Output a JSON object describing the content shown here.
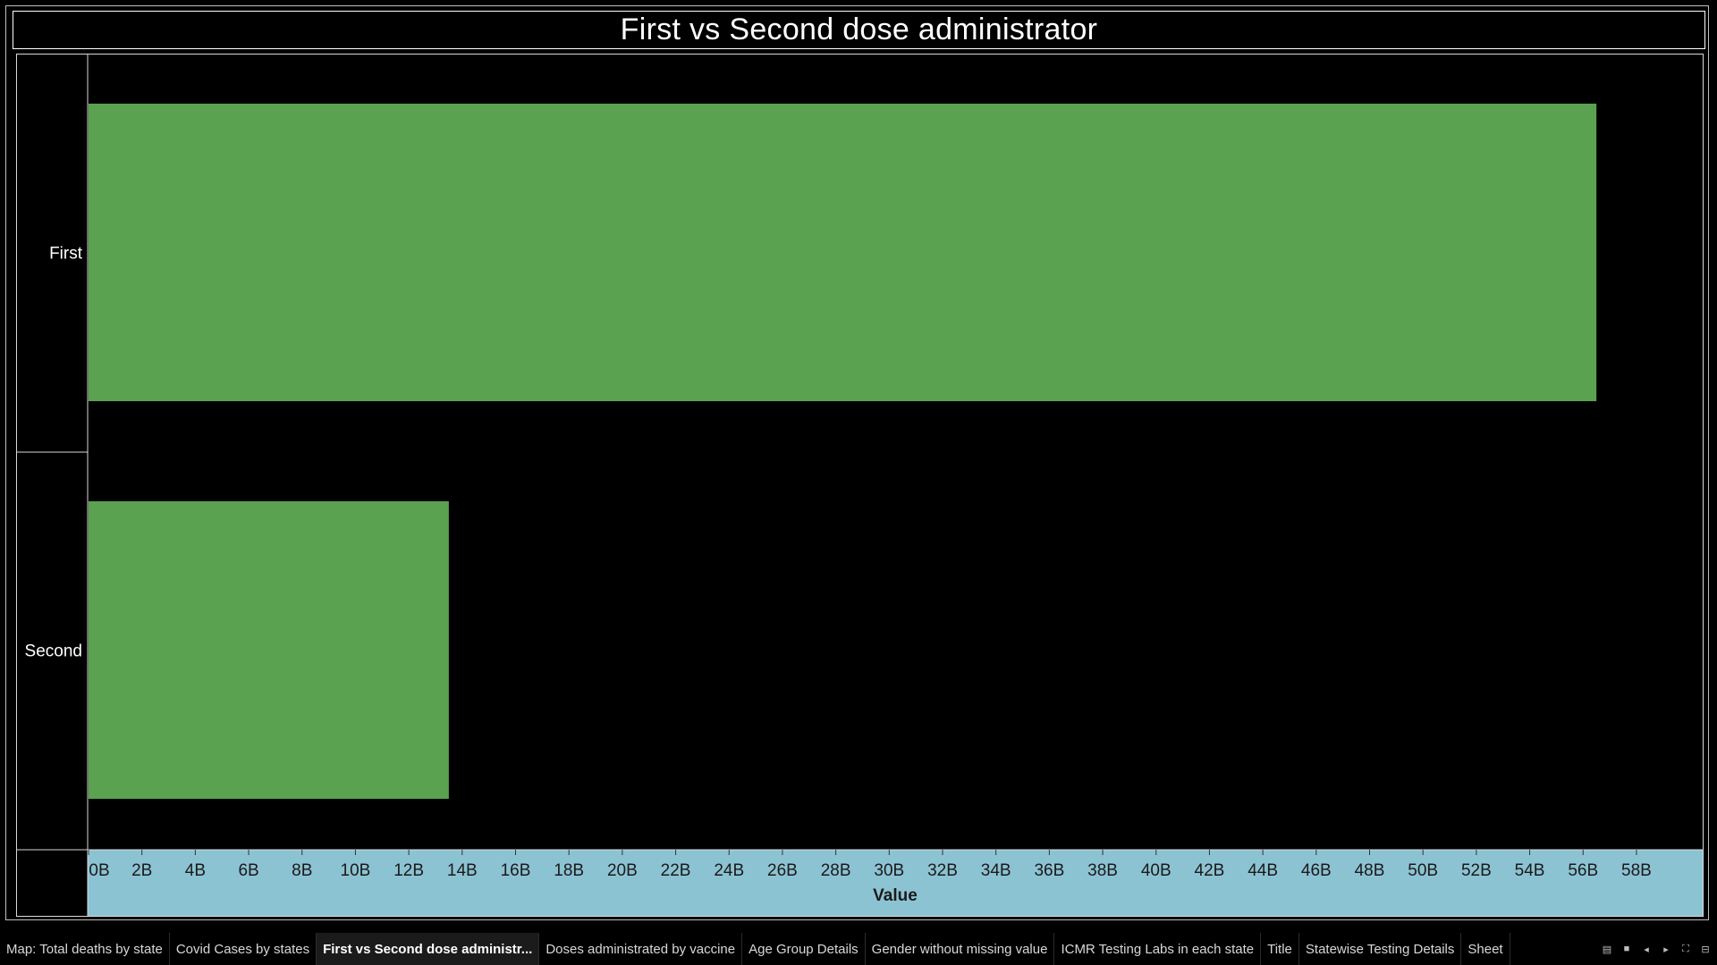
{
  "title": "First vs Second dose administrator",
  "colors": {
    "bar": "#5aa150",
    "axis_band": "#8cc3d3",
    "background": "#000000"
  },
  "chart_data": {
    "type": "bar",
    "orientation": "horizontal",
    "title": "First vs Second dose administrator",
    "categories": [
      "First",
      "Second"
    ],
    "values": [
      56500000000,
      13500000000
    ],
    "xlabel": "Value",
    "xlim": [
      0,
      59200000000
    ],
    "x_ticks": [
      0,
      2000000000,
      4000000000,
      6000000000,
      8000000000,
      10000000000,
      12000000000,
      14000000000,
      16000000000,
      18000000000,
      20000000000,
      22000000000,
      24000000000,
      26000000000,
      28000000000,
      30000000000,
      32000000000,
      34000000000,
      36000000000,
      38000000000,
      40000000000,
      42000000000,
      44000000000,
      46000000000,
      48000000000,
      50000000000,
      52000000000,
      54000000000,
      56000000000,
      58000000000
    ],
    "x_tick_labels": [
      "0B",
      "2B",
      "4B",
      "6B",
      "8B",
      "10B",
      "12B",
      "14B",
      "16B",
      "18B",
      "20B",
      "22B",
      "24B",
      "26B",
      "28B",
      "30B",
      "32B",
      "34B",
      "36B",
      "38B",
      "40B",
      "42B",
      "44B",
      "46B",
      "48B",
      "50B",
      "52B",
      "54B",
      "56B",
      "58B"
    ],
    "grid": false,
    "legend": "none"
  },
  "tabs": [
    {
      "label": "Map: Total deaths by state",
      "active": false
    },
    {
      "label": "Covid Cases by states",
      "active": false
    },
    {
      "label": "First vs Second dose administr...",
      "active": true
    },
    {
      "label": "Doses administrated by vaccine",
      "active": false
    },
    {
      "label": "Age Group Details",
      "active": false
    },
    {
      "label": "Gender without missing value",
      "active": false
    },
    {
      "label": "ICMR Testing Labs in each state",
      "active": false
    },
    {
      "label": "Title",
      "active": false
    },
    {
      "label": "Statewise Testing Details",
      "active": false
    },
    {
      "label": "Sheet",
      "active": false
    }
  ],
  "controls": [
    {
      "name": "show-filmstrip-icon",
      "glyph": "▤"
    },
    {
      "name": "show-tabs-icon",
      "glyph": "■"
    },
    {
      "name": "previous-sheet-icon",
      "glyph": "◂"
    },
    {
      "name": "next-sheet-icon",
      "glyph": "▸"
    },
    {
      "name": "fullscreen-icon",
      "glyph": "⛶"
    },
    {
      "name": "presentation-mode-icon",
      "glyph": "⊟"
    }
  ]
}
